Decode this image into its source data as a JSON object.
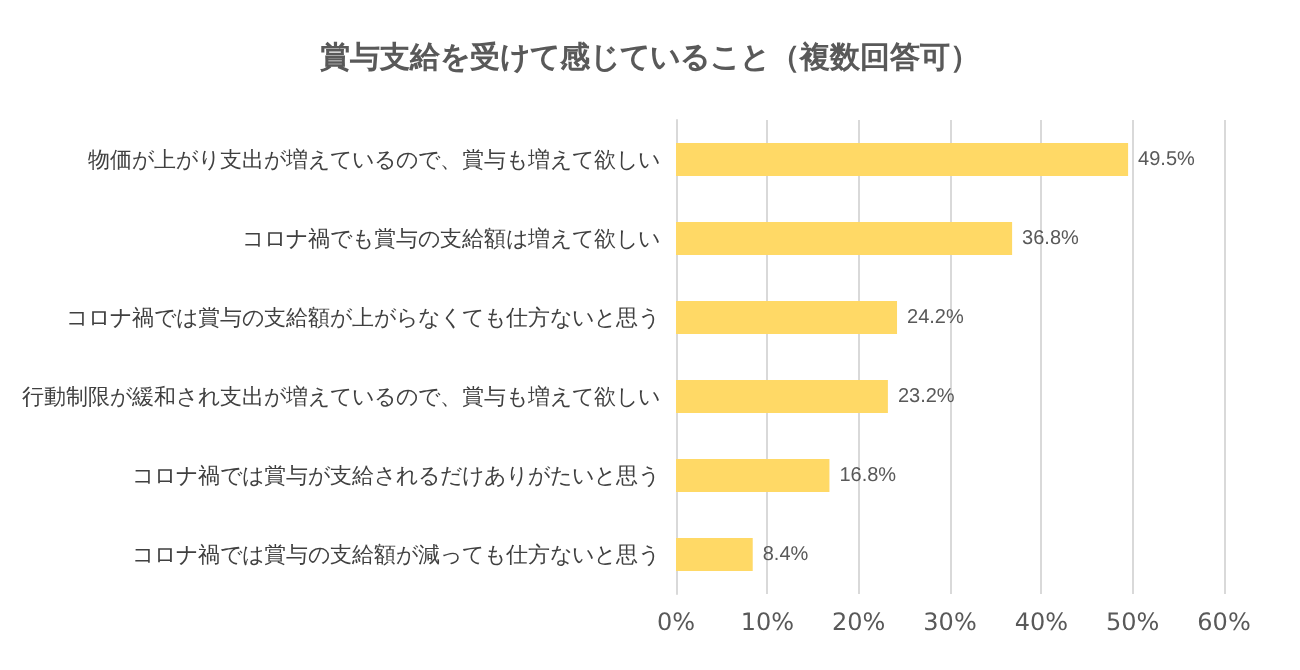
{
  "chart_data": {
    "type": "bar",
    "orientation": "horizontal",
    "title": "賞与支給を受けて感じていること（複数回答可）",
    "categories": [
      "物価が上がり支出が増えているので、賞与も増えて欲しい",
      "コロナ禍でも賞与の支給額は増えて欲しい",
      "コロナ禍では賞与の支給額が上がらなくても仕方ないと思う",
      "行動制限が緩和され支出が増えているので、賞与も増えて欲しい",
      "コロナ禍では賞与が支給されるだけありがたいと思う",
      "コロナ禍では賞与の支給額が減っても仕方ないと思う"
    ],
    "values": [
      49.5,
      36.8,
      24.2,
      23.2,
      16.8,
      8.4
    ],
    "value_labels": [
      "49.5%",
      "36.8%",
      "24.2%",
      "23.2%",
      "16.8%",
      "8.4%"
    ],
    "color": "#ffd966",
    "xlim": [
      0,
      60
    ],
    "xticks": [
      {
        "value": 0,
        "label": "0%"
      },
      {
        "value": 10,
        "label": "10%"
      },
      {
        "value": 20,
        "label": "20%"
      },
      {
        "value": 30,
        "label": "30%"
      },
      {
        "value": 40,
        "label": "40%"
      },
      {
        "value": 50,
        "label": "50%"
      },
      {
        "value": 60,
        "label": "60%"
      }
    ],
    "grid": "x"
  }
}
